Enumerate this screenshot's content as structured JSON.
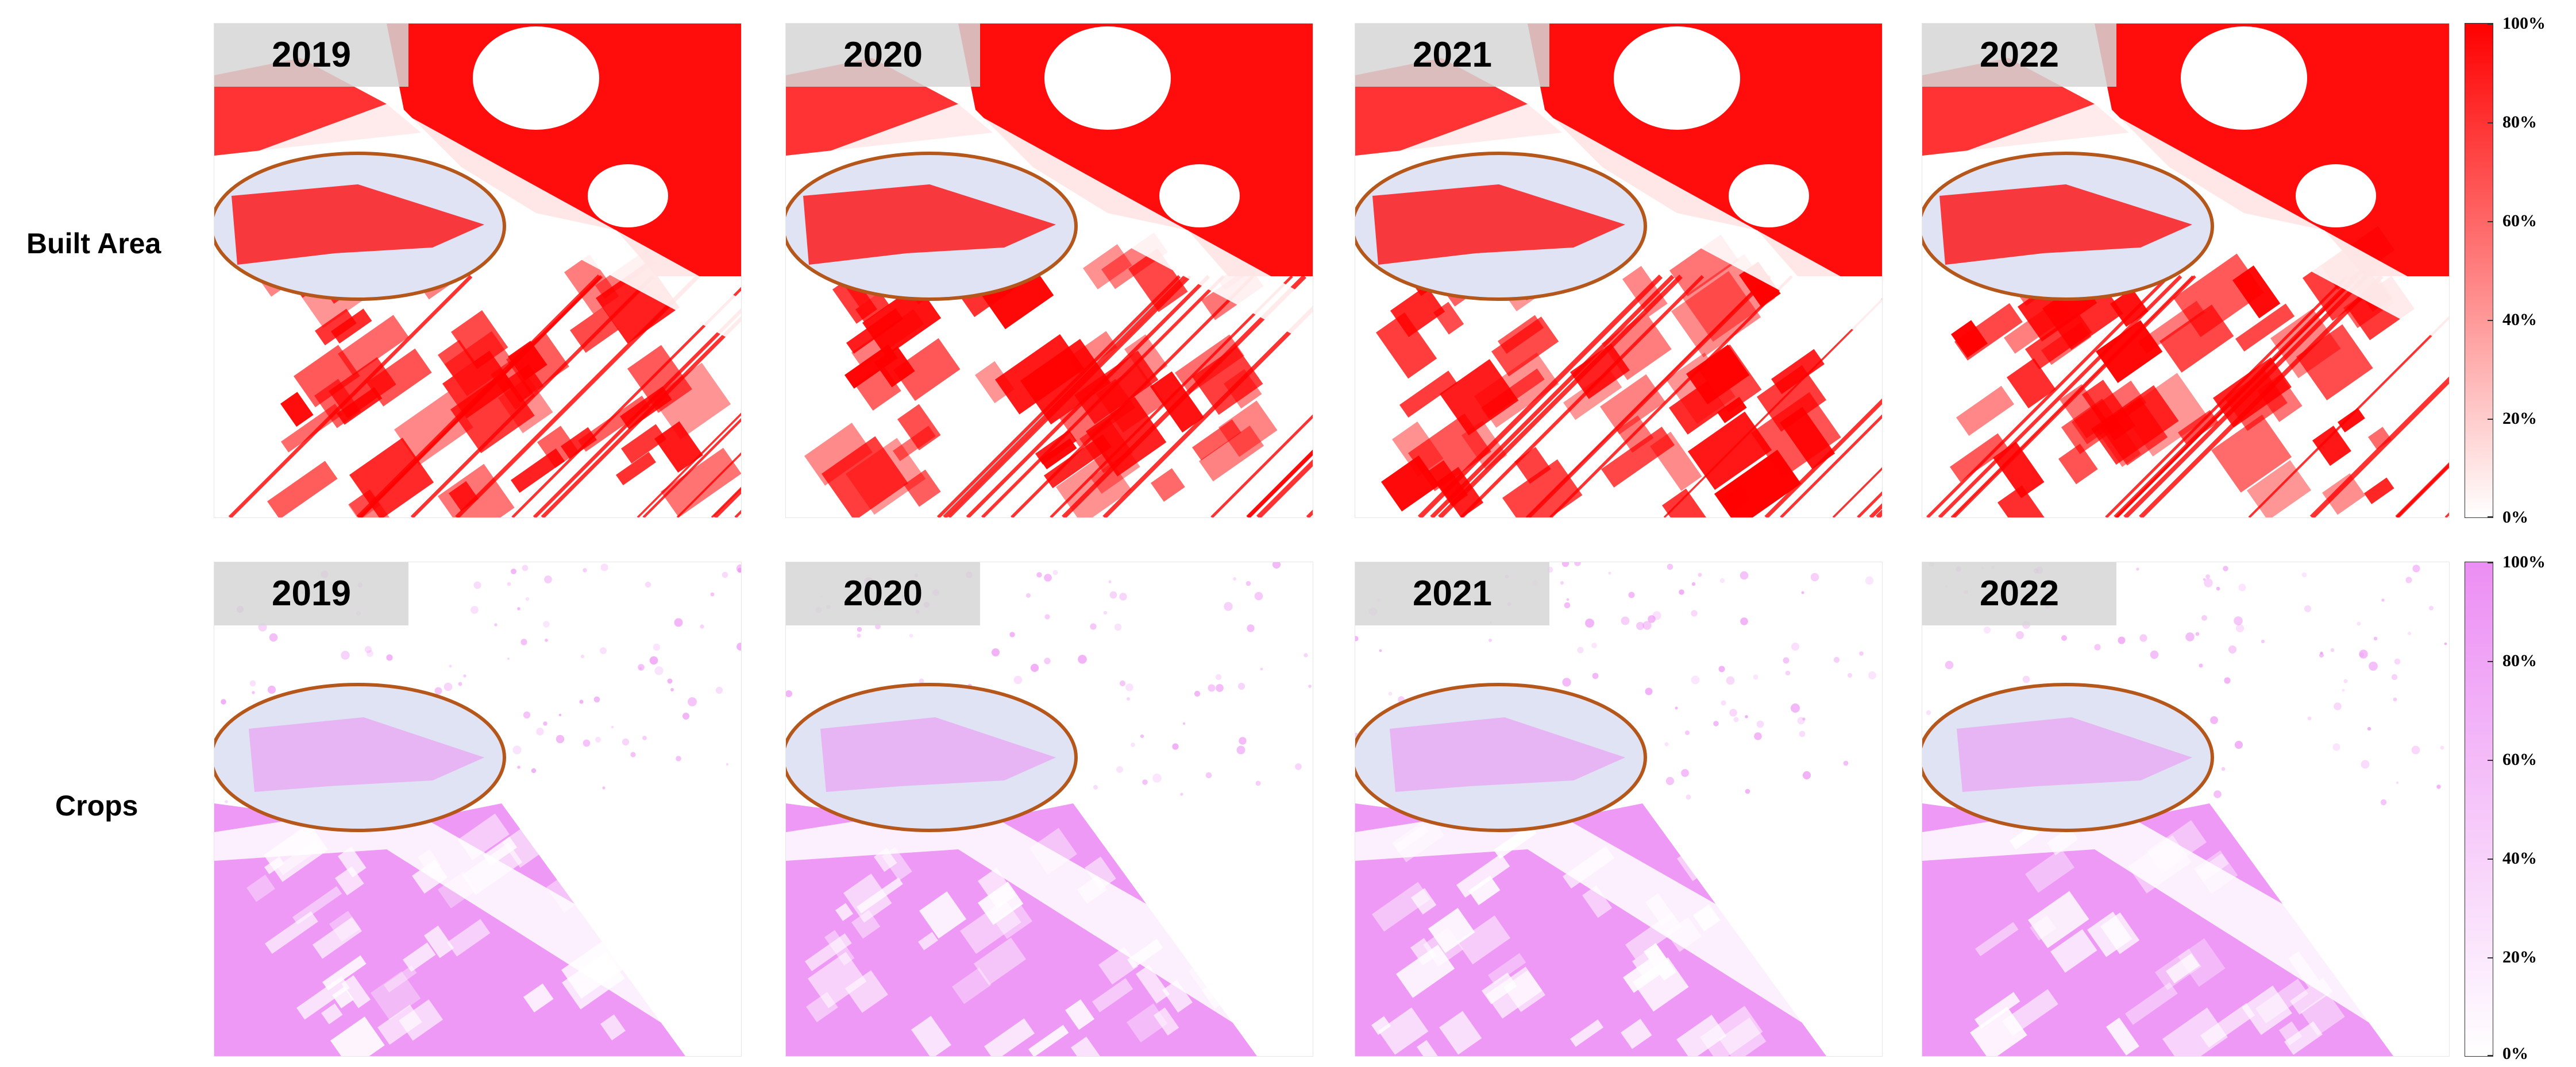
{
  "rows": [
    {
      "label": "Built Area",
      "color": "#ff0000",
      "highlight_color": "#b5561a",
      "years": [
        "2019",
        "2020",
        "2021",
        "2022"
      ]
    },
    {
      "label": "Crops",
      "color": "#ec8ef4",
      "highlight_color": "#b5561a",
      "years": [
        "2019",
        "2020",
        "2021",
        "2022"
      ]
    }
  ],
  "colorbars": [
    {
      "ticks": [
        "100%",
        "80%",
        "60%",
        "40%",
        "20%",
        "0%"
      ],
      "color_max": "#ff0000",
      "color_min": "#ffffff"
    },
    {
      "ticks": [
        "100%",
        "80%",
        "60%",
        "40%",
        "20%",
        "0%"
      ],
      "color_max": "#ec8ef4",
      "color_min": "#ffffff"
    }
  ]
}
